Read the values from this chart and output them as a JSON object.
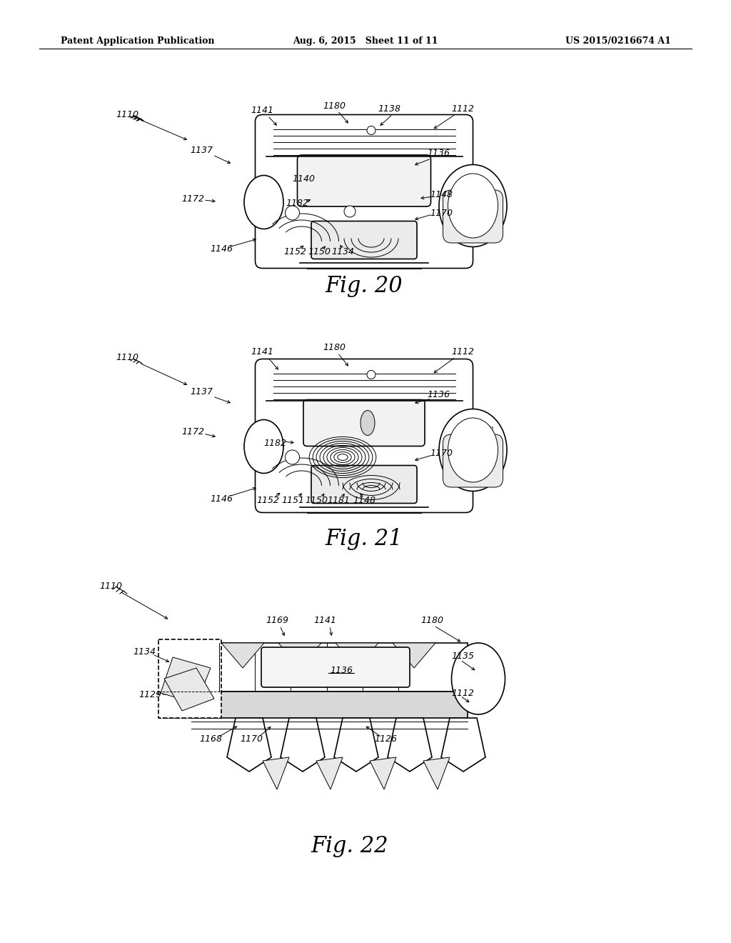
{
  "header_left": "Patent Application Publication",
  "header_middle": "Aug. 6, 2015   Sheet 11 of 11",
  "header_right": "US 2015/0216674 A1",
  "fig20_caption": "Fig. 20",
  "fig21_caption": "Fig. 21",
  "fig22_caption": "Fig. 22",
  "background_color": "#ffffff",
  "line_color": "#000000"
}
